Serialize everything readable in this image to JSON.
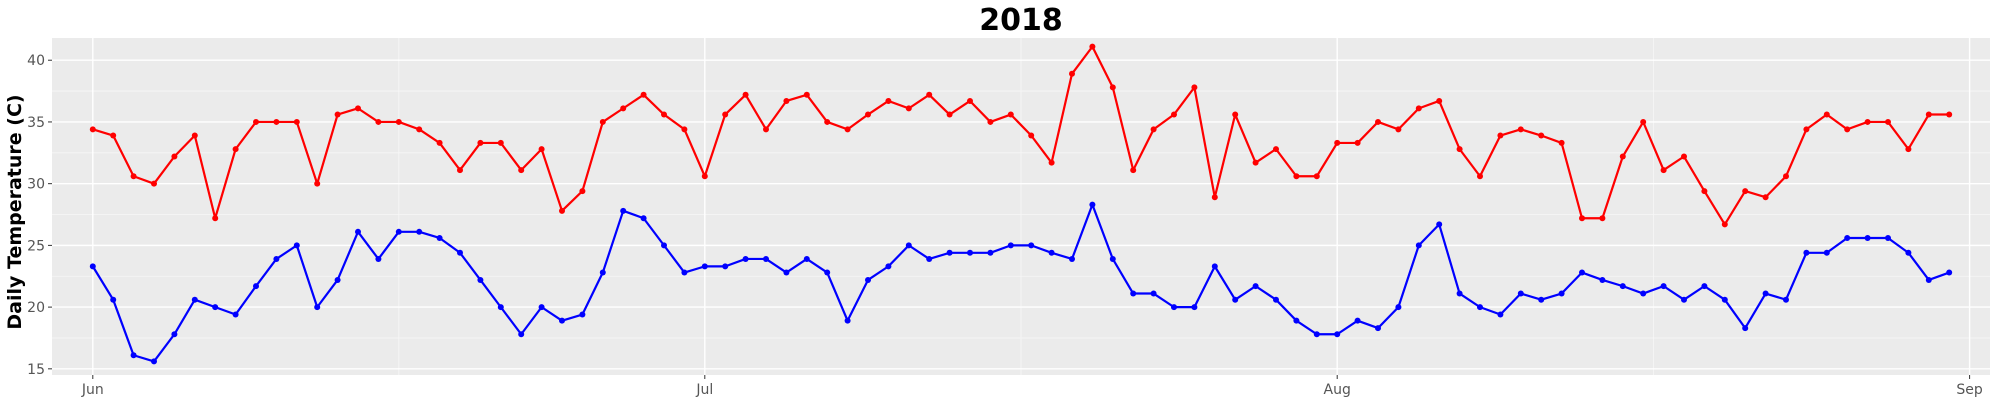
{
  "chart_data": {
    "type": "line",
    "title": "2018",
    "xlabel": "",
    "ylabel": "Daily Temperature (C)",
    "x_axis": {
      "type": "date",
      "range": [
        "2018-05-30",
        "2018-09-02"
      ],
      "ticks": [
        {
          "date": "2018-06-01",
          "label": "Jun"
        },
        {
          "date": "2018-07-01",
          "label": "Jul"
        },
        {
          "date": "2018-08-01",
          "label": "Aug"
        },
        {
          "date": "2018-09-01",
          "label": "Sep"
        }
      ]
    },
    "ylim": [
      14.5,
      41.8
    ],
    "yticks": [
      15,
      20,
      25,
      30,
      35,
      40
    ],
    "grid": true,
    "legend": "none",
    "start_date": "2018-06-01",
    "series": [
      {
        "color": "#ff0000",
        "values": [
          34.4,
          33.9,
          30.6,
          30.0,
          32.2,
          33.9,
          27.2,
          32.8,
          35.0,
          35.0,
          35.0,
          30.0,
          35.6,
          36.1,
          35.0,
          35.0,
          34.4,
          33.3,
          31.1,
          33.3,
          33.3,
          31.1,
          32.8,
          27.8,
          29.4,
          35.0,
          36.1,
          37.2,
          35.6,
          34.4,
          30.6,
          35.6,
          37.2,
          34.4,
          36.7,
          37.2,
          35.0,
          34.4,
          35.6,
          36.7,
          36.1,
          37.2,
          35.6,
          36.7,
          35.0,
          35.6,
          33.9,
          31.7,
          38.9,
          41.1,
          37.8,
          31.1,
          34.4,
          35.6,
          37.8,
          28.9,
          35.6,
          31.7,
          32.8,
          30.6,
          30.6,
          33.3,
          33.3,
          35.0,
          34.4,
          36.1,
          36.7,
          32.8,
          30.6,
          33.9,
          34.4,
          33.9,
          33.3,
          27.2,
          27.2,
          32.2,
          35.0,
          31.1,
          32.2,
          29.4,
          26.7,
          29.4,
          28.9,
          30.6,
          34.4,
          35.6,
          34.4,
          35.0,
          35.0,
          32.8,
          35.6,
          35.6
        ]
      },
      {
        "color": "#0000ff",
        "values": [
          23.3,
          20.6,
          16.1,
          15.6,
          17.8,
          20.6,
          20.0,
          19.4,
          21.7,
          23.9,
          25.0,
          20.0,
          22.2,
          26.1,
          23.9,
          26.1,
          26.1,
          25.6,
          24.4,
          22.2,
          20.0,
          17.8,
          20.0,
          18.9,
          19.4,
          22.8,
          27.8,
          27.2,
          25.0,
          22.8,
          23.3,
          23.3,
          23.9,
          23.9,
          22.8,
          23.9,
          22.8,
          18.9,
          22.2,
          23.3,
          25.0,
          23.9,
          24.4,
          24.4,
          24.4,
          25.0,
          25.0,
          24.4,
          23.9,
          28.3,
          23.9,
          21.1,
          21.1,
          20.0,
          20.0,
          23.3,
          20.6,
          21.7,
          20.6,
          18.9,
          17.8,
          17.8,
          18.9,
          18.3,
          20.0,
          25.0,
          26.7,
          21.1,
          20.0,
          19.4,
          21.1,
          20.6,
          21.1,
          22.8,
          22.2,
          21.7,
          21.1,
          21.7,
          20.6,
          21.7,
          20.6,
          18.3,
          21.1,
          20.6,
          24.4,
          24.4,
          25.6,
          25.6,
          25.6,
          24.4,
          22.2,
          22.8
        ]
      }
    ]
  }
}
